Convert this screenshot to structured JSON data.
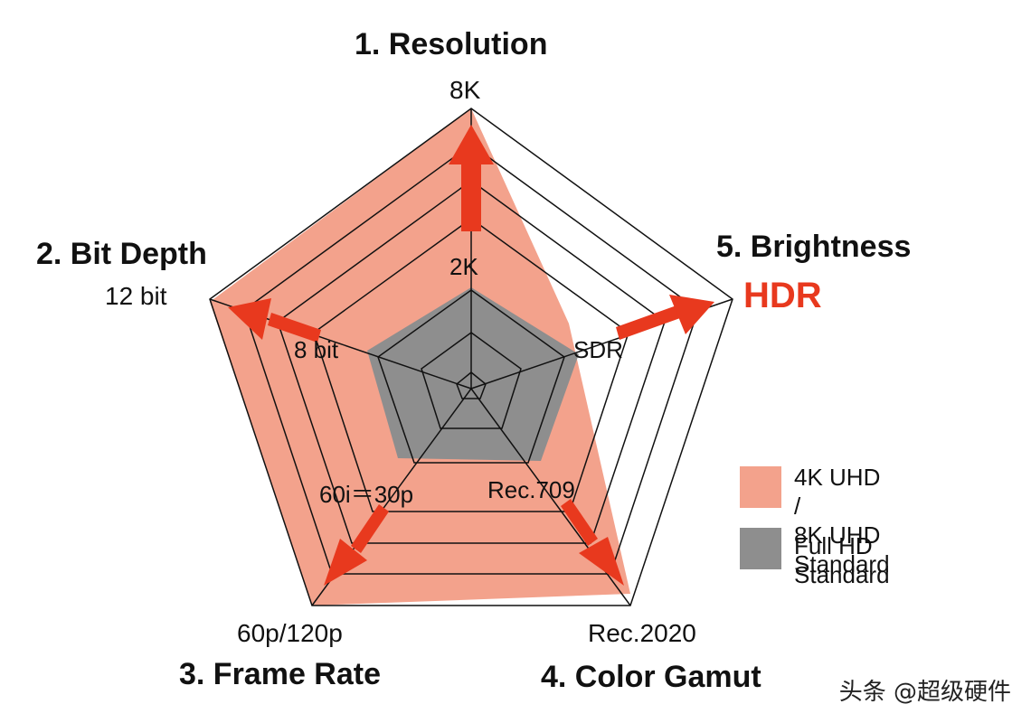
{
  "colors": {
    "uhd_fill": "#f3a28c",
    "fullhd_fill": "#8e8e8e",
    "arrow": "#e8391e",
    "line": "#111111"
  },
  "axes": [
    {
      "title": "1. Resolution",
      "max_label": "8K",
      "base_label": "2K"
    },
    {
      "title": "5. Brightness",
      "max_label": "HDR",
      "base_label": "SDR"
    },
    {
      "title": "4. Color Gamut",
      "max_label": "Rec.2020",
      "base_label": "Rec.709"
    },
    {
      "title": "3. Frame Rate",
      "max_label": "60p/120p",
      "base_label": "60i＝30p"
    },
    {
      "title": "2. Bit Depth",
      "max_label": "12 bit",
      "base_label": "8 bit"
    }
  ],
  "legend": [
    {
      "label": "4K UHD /\n8K UHD Standard",
      "color": "#f3a28c"
    },
    {
      "label": "Full HD Standard",
      "color": "#8e8e8e"
    }
  ],
  "watermark": "头条 @超级硬件"
}
